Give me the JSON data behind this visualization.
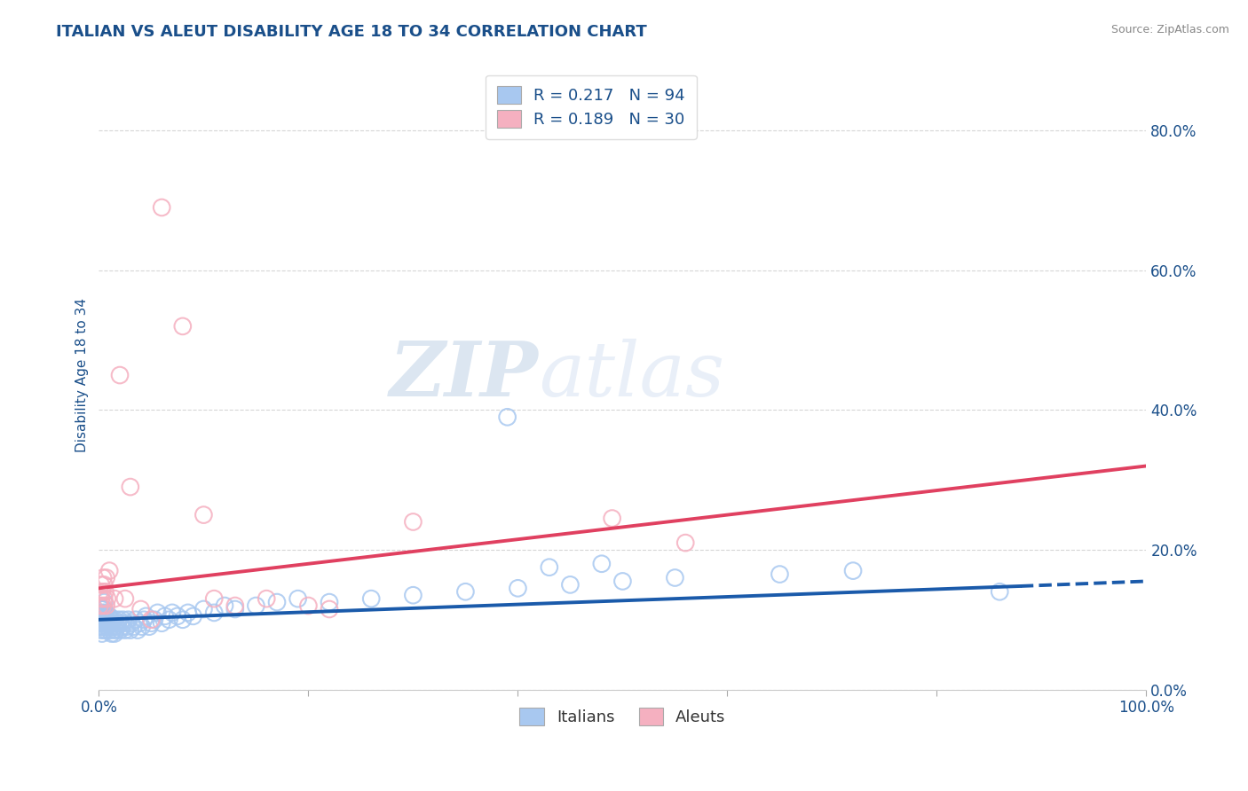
{
  "title": "ITALIAN VS ALEUT DISABILITY AGE 18 TO 34 CORRELATION CHART",
  "source_text": "Source: ZipAtlas.com",
  "ylabel": "Disability Age 18 to 34",
  "watermark_zip": "ZIP",
  "watermark_atlas": "atlas",
  "title_color": "#1a4f8a",
  "title_fontsize": 13,
  "axis_label_color": "#1a4f8a",
  "tick_color": "#1a4f8a",
  "source_color": "#888888",
  "italian_color_face": "#a8c8f0",
  "italian_color_edge": "#6aaae0",
  "aleut_color_face": "#f5b0c0",
  "aleut_color_edge": "#e080a0",
  "italian_line_color": "#1a5aaa",
  "aleut_line_color": "#e04060",
  "italian_scatter_x": [
    0.001,
    0.001,
    0.001,
    0.002,
    0.002,
    0.002,
    0.002,
    0.003,
    0.003,
    0.003,
    0.003,
    0.004,
    0.004,
    0.004,
    0.005,
    0.005,
    0.005,
    0.005,
    0.005,
    0.006,
    0.006,
    0.006,
    0.007,
    0.007,
    0.007,
    0.008,
    0.008,
    0.009,
    0.009,
    0.01,
    0.01,
    0.01,
    0.011,
    0.012,
    0.012,
    0.013,
    0.013,
    0.014,
    0.015,
    0.015,
    0.016,
    0.017,
    0.018,
    0.019,
    0.02,
    0.021,
    0.022,
    0.023,
    0.025,
    0.026,
    0.027,
    0.028,
    0.03,
    0.031,
    0.033,
    0.035,
    0.037,
    0.039,
    0.041,
    0.043,
    0.045,
    0.048,
    0.05,
    0.053,
    0.056,
    0.06,
    0.063,
    0.067,
    0.07,
    0.075,
    0.08,
    0.085,
    0.09,
    0.1,
    0.11,
    0.12,
    0.13,
    0.15,
    0.17,
    0.19,
    0.22,
    0.26,
    0.3,
    0.35,
    0.4,
    0.45,
    0.5,
    0.55,
    0.65,
    0.72,
    0.43,
    0.48,
    0.39,
    0.86
  ],
  "italian_scatter_y": [
    0.1,
    0.09,
    0.11,
    0.085,
    0.095,
    0.105,
    0.115,
    0.09,
    0.1,
    0.11,
    0.08,
    0.095,
    0.105,
    0.115,
    0.085,
    0.095,
    0.105,
    0.115,
    0.125,
    0.09,
    0.1,
    0.11,
    0.085,
    0.095,
    0.105,
    0.09,
    0.1,
    0.095,
    0.105,
    0.085,
    0.095,
    0.105,
    0.09,
    0.08,
    0.1,
    0.085,
    0.095,
    0.09,
    0.08,
    0.1,
    0.085,
    0.09,
    0.095,
    0.1,
    0.085,
    0.095,
    0.09,
    0.1,
    0.085,
    0.095,
    0.09,
    0.1,
    0.085,
    0.095,
    0.09,
    0.1,
    0.085,
    0.095,
    0.09,
    0.1,
    0.105,
    0.09,
    0.095,
    0.1,
    0.11,
    0.095,
    0.105,
    0.1,
    0.11,
    0.105,
    0.1,
    0.11,
    0.105,
    0.115,
    0.11,
    0.12,
    0.115,
    0.12,
    0.125,
    0.13,
    0.125,
    0.13,
    0.135,
    0.14,
    0.145,
    0.15,
    0.155,
    0.16,
    0.165,
    0.17,
    0.175,
    0.18,
    0.39,
    0.14
  ],
  "aleut_scatter_x": [
    0.001,
    0.002,
    0.002,
    0.003,
    0.004,
    0.004,
    0.005,
    0.005,
    0.006,
    0.007,
    0.007,
    0.008,
    0.01,
    0.015,
    0.02,
    0.025,
    0.03,
    0.04,
    0.05,
    0.06,
    0.08,
    0.1,
    0.11,
    0.13,
    0.16,
    0.2,
    0.22,
    0.3,
    0.49,
    0.56
  ],
  "aleut_scatter_y": [
    0.12,
    0.15,
    0.13,
    0.14,
    0.12,
    0.16,
    0.13,
    0.15,
    0.14,
    0.12,
    0.16,
    0.13,
    0.17,
    0.13,
    0.45,
    0.13,
    0.29,
    0.115,
    0.1,
    0.69,
    0.52,
    0.25,
    0.13,
    0.12,
    0.13,
    0.12,
    0.115,
    0.24,
    0.245,
    0.21
  ],
  "xlim": [
    0.0,
    1.0
  ],
  "ylim": [
    0.0,
    0.9
  ],
  "ytick_positions": [
    0.0,
    0.2,
    0.4,
    0.6,
    0.8
  ],
  "yticklabels_right": [
    "0.0%",
    "20.0%",
    "40.0%",
    "60.0%",
    "80.0%"
  ],
  "xtick_positions": [
    0.0,
    0.2,
    0.4,
    0.6,
    0.8,
    1.0
  ],
  "xticklabels": [
    "0.0%",
    "",
    "",
    "",
    "",
    "100.0%"
  ],
  "italian_line_x0": 0.0,
  "italian_line_y0": 0.1,
  "italian_line_x1": 0.88,
  "italian_line_y1": 0.148,
  "italian_line_x2": 1.0,
  "italian_line_y2": 0.155,
  "aleut_line_x0": 0.0,
  "aleut_line_y0": 0.145,
  "aleut_line_x1": 1.0,
  "aleut_line_y1": 0.32,
  "background_color": "#ffffff",
  "grid_color": "#cccccc",
  "legend_r_color": "#1a4f8a",
  "legend_n_color": "#e04060"
}
